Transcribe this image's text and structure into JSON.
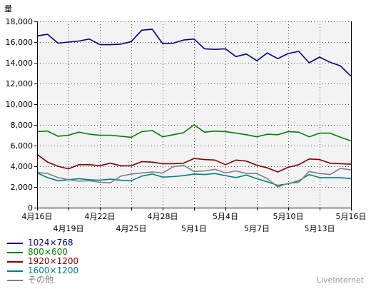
{
  "chart_data": {
    "type": "line",
    "ylabel": "量",
    "ylim": [
      0,
      18000
    ],
    "yticks": [
      0,
      2000,
      4000,
      6000,
      8000,
      10000,
      12000,
      14000,
      16000,
      18000
    ],
    "ytick_labels": [
      "0",
      "2,000",
      "4,000",
      "6,000",
      "8,000",
      "10,000",
      "12,000",
      "14,000",
      "16,000",
      "18,000"
    ],
    "x": [
      "4月16日",
      "4月17日",
      "4月18日",
      "4月19日",
      "4月20日",
      "4月21日",
      "4月22日",
      "4月23日",
      "4月24日",
      "4月25日",
      "4月26日",
      "4月27日",
      "4月28日",
      "4月29日",
      "4月30日",
      "5月1日",
      "5月2日",
      "5月3日",
      "5月4日",
      "5月5日",
      "5月6日",
      "5月7日",
      "5月8日",
      "5月9日",
      "5月10日",
      "5月11日",
      "5月12日",
      "5月13日",
      "5月14日",
      "5月15日",
      "5月16日"
    ],
    "xtick_labels_top": [
      {
        "index": 0,
        "label": "4月16日"
      },
      {
        "index": 6,
        "label": "4月22日"
      },
      {
        "index": 12,
        "label": "4月28日"
      },
      {
        "index": 18,
        "label": "5月4日"
      },
      {
        "index": 24,
        "label": "5月10日"
      },
      {
        "index": 30,
        "label": "5月16日"
      }
    ],
    "xtick_labels_bottom": [
      {
        "index": 3,
        "label": "4月19日"
      },
      {
        "index": 9,
        "label": "4月25日"
      },
      {
        "index": 15,
        "label": "5月1日"
      },
      {
        "index": 21,
        "label": "5月7日"
      },
      {
        "index": 27,
        "label": "5月13日"
      }
    ],
    "grid": true,
    "legend_position": "bottom-left",
    "series": [
      {
        "name": "1024×768",
        "color": "#000080",
        "values": [
          16600,
          16750,
          15900,
          16000,
          16100,
          16300,
          15750,
          15750,
          15800,
          16050,
          17150,
          17250,
          15850,
          15900,
          16200,
          16300,
          15350,
          15300,
          15350,
          14600,
          14850,
          14200,
          14950,
          14400,
          14900,
          15100,
          14000,
          14550,
          14050,
          13700,
          12700
        ]
      },
      {
        "name": "800×600",
        "color": "#008000",
        "values": [
          7350,
          7400,
          6900,
          7000,
          7300,
          7100,
          7000,
          7000,
          6900,
          6800,
          7350,
          7450,
          6850,
          7050,
          7250,
          8000,
          7300,
          7400,
          7350,
          7200,
          7050,
          6850,
          7100,
          7050,
          7350,
          7300,
          6850,
          7200,
          7200,
          6800,
          6450
        ]
      },
      {
        "name": "1920×1200",
        "color": "#800000",
        "values": [
          5150,
          4400,
          4000,
          3750,
          4150,
          4150,
          4050,
          4300,
          4050,
          4050,
          4450,
          4400,
          4250,
          4250,
          4300,
          4750,
          4650,
          4600,
          4150,
          4600,
          4500,
          4100,
          3850,
          3450,
          3900,
          4150,
          4700,
          4650,
          4300,
          4250,
          4200
        ]
      },
      {
        "name": "1600×1200",
        "color": "#008080",
        "values": [
          3350,
          2900,
          2600,
          2700,
          2800,
          2700,
          2650,
          2750,
          2650,
          2600,
          3050,
          3250,
          2950,
          3000,
          3100,
          3250,
          3200,
          3300,
          3100,
          2900,
          3150,
          2800,
          2500,
          2150,
          2300,
          2600,
          3200,
          2900,
          2900,
          2900,
          2800
        ]
      },
      {
        "name": "その他",
        "color": "#808080",
        "values": [
          3400,
          3300,
          2900,
          2700,
          2550,
          2600,
          2450,
          2400,
          3050,
          3250,
          3350,
          3450,
          3350,
          3950,
          4100,
          3500,
          3550,
          3700,
          3350,
          3550,
          3300,
          3300,
          2800,
          2000,
          2350,
          2450,
          3500,
          3300,
          3200,
          3800,
          3650
        ]
      }
    ]
  },
  "legend": {
    "items": [
      {
        "label": "1024×768",
        "color": "#000080"
      },
      {
        "label": "800×600",
        "color": "#008000"
      },
      {
        "label": "1920×1200",
        "color": "#800000"
      },
      {
        "label": "1600×1200",
        "color": "#008080"
      },
      {
        "label": "その他",
        "color": "#808080"
      }
    ]
  },
  "credit": "LiveInternet"
}
